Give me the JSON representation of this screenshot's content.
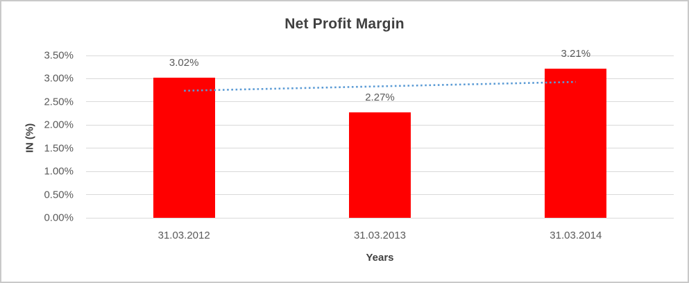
{
  "chart_data": {
    "type": "bar",
    "title": "Net Profit Margin",
    "categories": [
      "31.03.2012",
      "31.03.2013",
      "31.03.2014"
    ],
    "values": [
      3.02,
      2.27,
      3.21
    ],
    "value_labels": [
      "3.02%",
      "2.27%",
      "3.21%"
    ],
    "xlabel": "Years",
    "ylabel": "IN (%)",
    "ylim": [
      0,
      3.5
    ],
    "ytick_step": 0.5,
    "ytick_labels": [
      "0.00%",
      "0.50%",
      "1.00%",
      "1.50%",
      "2.00%",
      "2.50%",
      "3.00%",
      "3.50%"
    ],
    "grid": true,
    "legend": "none",
    "bar_color": "#ff0000",
    "trendline": {
      "style": "dotted",
      "type": "linear",
      "color": "#5b9bd5",
      "start_value": 2.74,
      "end_value": 2.93
    }
  },
  "styles": {
    "title_color": "#404040",
    "axis_title_color": "#404040",
    "tick_color": "#595959",
    "gridline_color": "#d9d9d9",
    "border_color": "#c9c9c9",
    "background": "#ffffff"
  }
}
